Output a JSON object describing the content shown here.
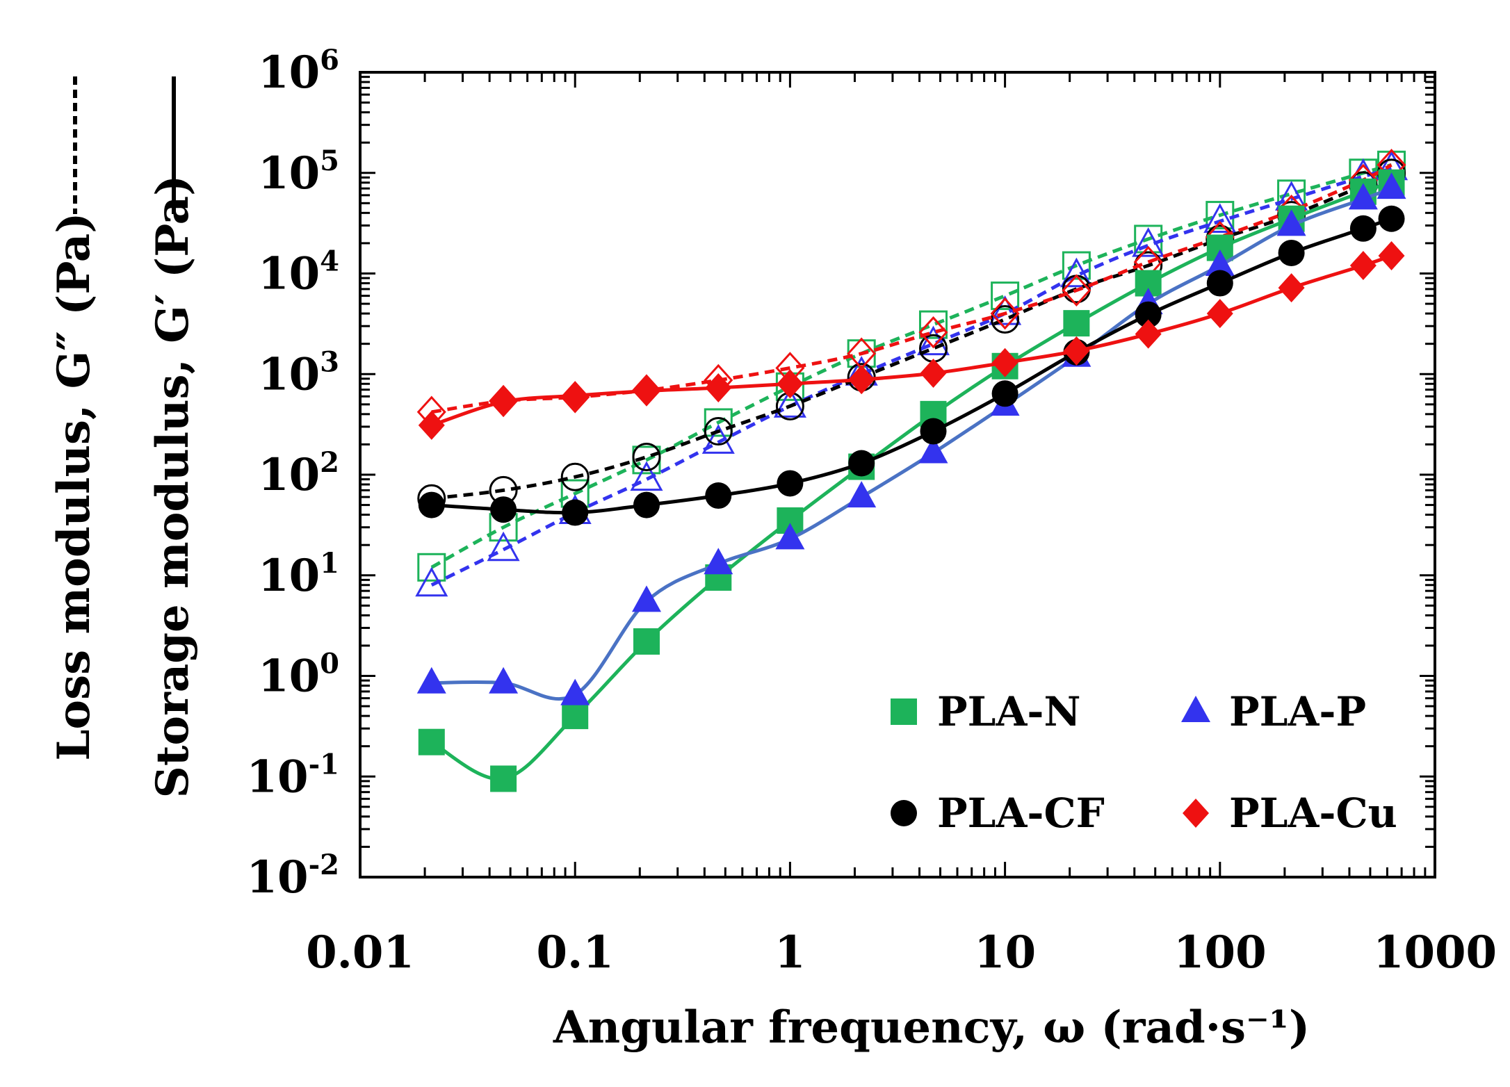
{
  "chart_data": {
    "type": "scatter",
    "x_scale": "log",
    "y_scale": "log",
    "xlim": [
      0.01,
      1000
    ],
    "ylim": [
      0.01,
      1000000
    ],
    "xlabel": "Angular frequency, ω (rad·s⁻¹)",
    "ylabel_storage": "Storage modulus, G′ (Pa)",
    "ylabel_loss": "Loss modulus, G″ (Pa)",
    "x_tick_labels": [
      "0.01",
      "0.1",
      "1",
      "10",
      "100",
      "1000"
    ],
    "y_ticks": [
      {
        "base": "10",
        "exp": "-2"
      },
      {
        "base": "10",
        "exp": "-1"
      },
      {
        "base": "10",
        "exp": "0"
      },
      {
        "base": "10",
        "exp": "1"
      },
      {
        "base": "10",
        "exp": "2"
      },
      {
        "base": "10",
        "exp": "3"
      },
      {
        "base": "10",
        "exp": "4"
      },
      {
        "base": "10",
        "exp": "5"
      },
      {
        "base": "10",
        "exp": "6"
      }
    ],
    "x": [
      0.0215,
      0.0464,
      0.1,
      0.215,
      0.464,
      1,
      2.15,
      4.64,
      10,
      21.5,
      46.4,
      100,
      215,
      464,
      628
    ],
    "series": [
      {
        "name": "PLA-N",
        "id": "pla-n",
        "color": "#1db35a",
        "line_color": "#1db35a",
        "marker": "square",
        "storage": [
          0.22,
          0.095,
          0.4,
          2.2,
          9.5,
          35,
          120,
          400,
          1200,
          3200,
          8000,
          18000,
          35000,
          65000,
          80000
        ],
        "loss": [
          12,
          30,
          65,
          140,
          330,
          750,
          1600,
          3100,
          6000,
          12000,
          22000,
          38000,
          62000,
          100000,
          120000
        ]
      },
      {
        "name": "PLA-P",
        "id": "pla-p",
        "color": "#3333ee",
        "line_color": "#4a72c4",
        "marker": "triangle",
        "storage": [
          0.85,
          0.85,
          0.65,
          5.5,
          13,
          23,
          60,
          165,
          490,
          1500,
          5000,
          12000,
          30000,
          55000,
          70000
        ],
        "loss": [
          8,
          18,
          42,
          90,
          210,
          480,
          1000,
          2000,
          4000,
          9500,
          19000,
          33000,
          55000,
          92000,
          110000
        ]
      },
      {
        "name": "PLA-CF",
        "id": "pla-cf",
        "color": "#000000",
        "line_color": "#000000",
        "marker": "circle",
        "storage": [
          50,
          45,
          42,
          50,
          62,
          82,
          130,
          270,
          640,
          1650,
          3900,
          8000,
          16000,
          28000,
          35000
        ],
        "loss": [
          58,
          70,
          95,
          150,
          270,
          480,
          930,
          1800,
          3500,
          7000,
          12000,
          22000,
          38000,
          75000,
          100000
        ]
      },
      {
        "name": "PLA-Cu",
        "id": "pla-cu",
        "color": "#ee1111",
        "line_color": "#ee1111",
        "marker": "diamond",
        "storage": [
          310,
          530,
          610,
          680,
          730,
          800,
          880,
          1020,
          1300,
          1700,
          2500,
          4000,
          7200,
          12000,
          15000
        ],
        "loss": [
          420,
          540,
          590,
          690,
          870,
          1150,
          1600,
          2600,
          4000,
          6800,
          13000,
          23000,
          42000,
          85000,
          120000
        ]
      }
    ],
    "legend_position": "bottom-right"
  }
}
